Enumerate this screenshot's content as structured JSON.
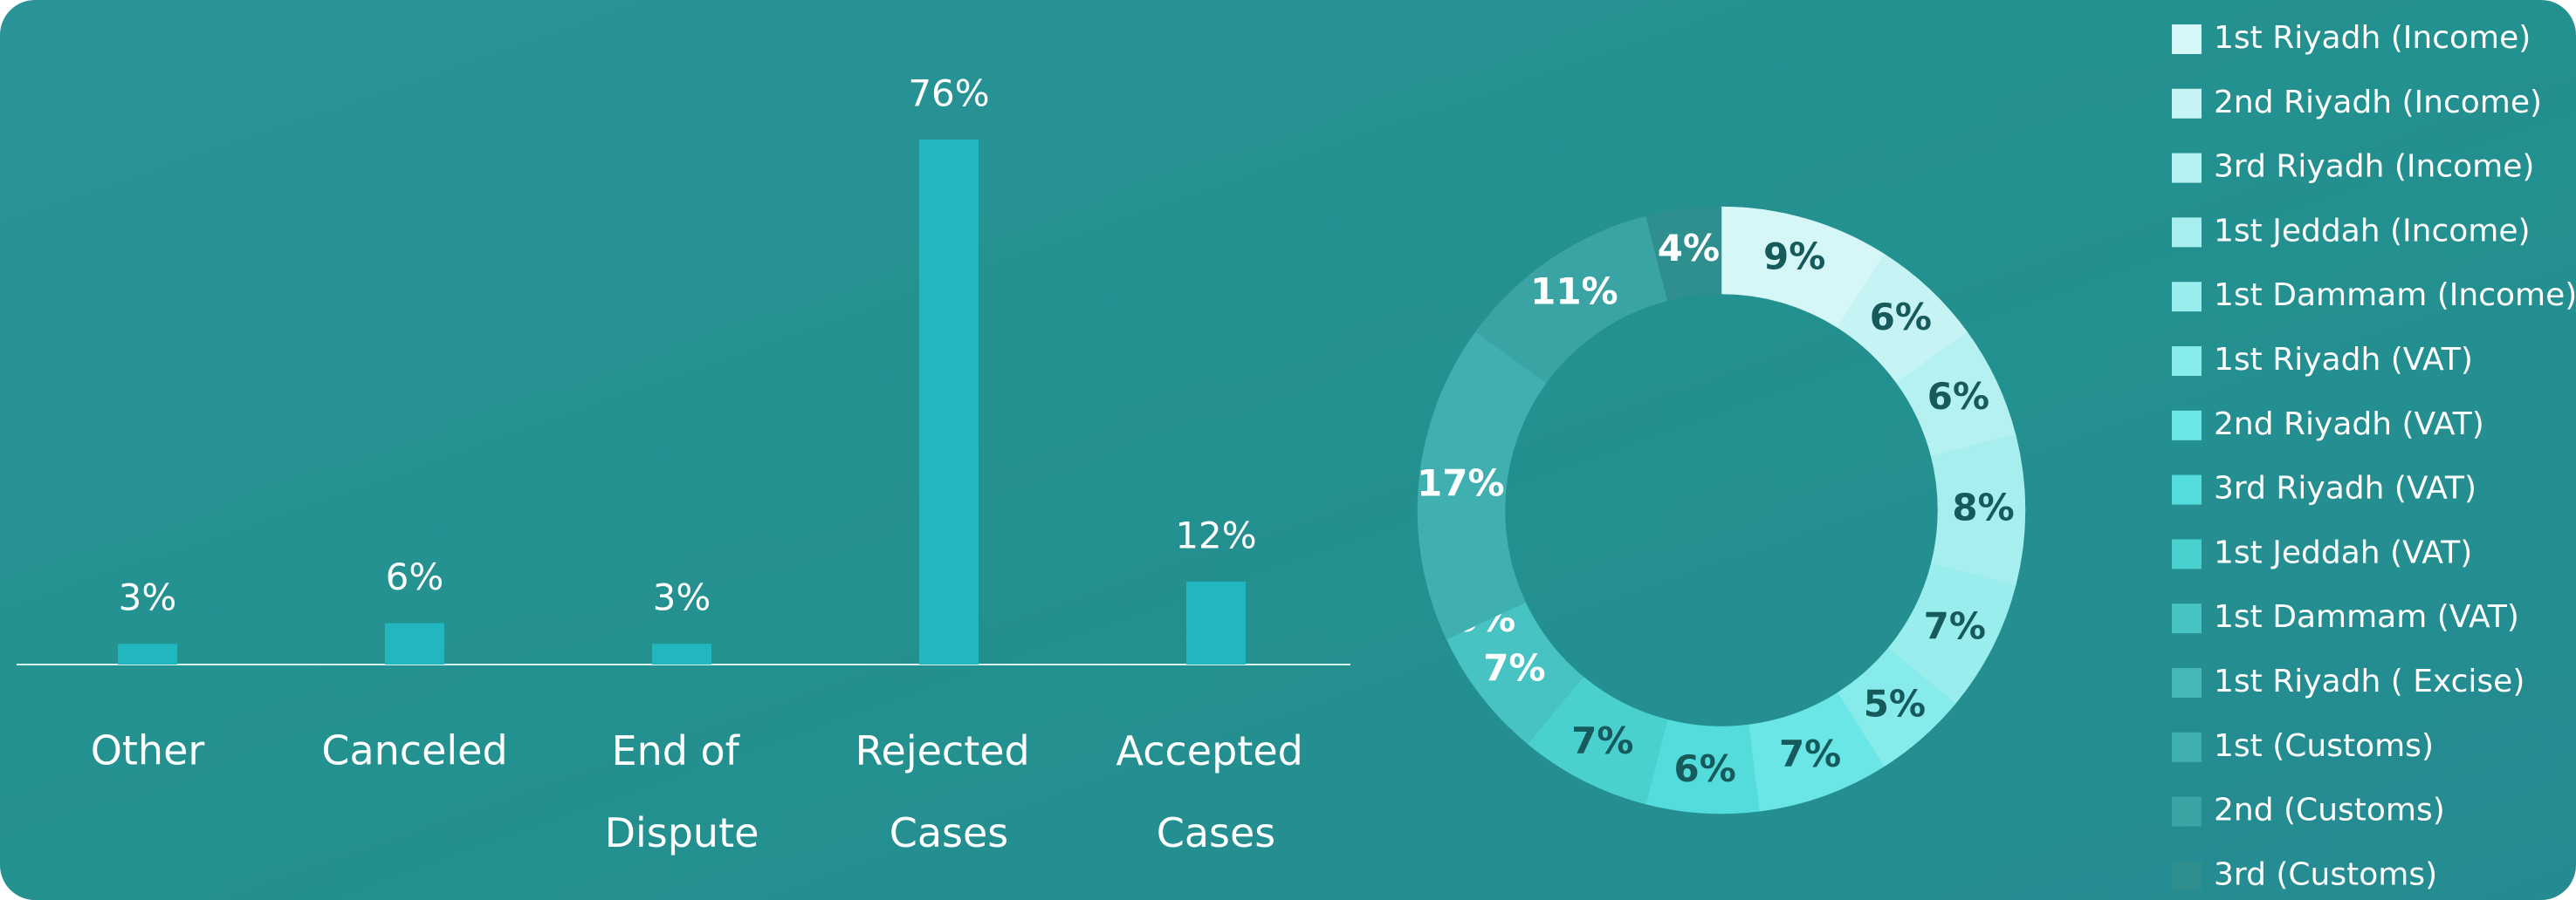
{
  "chart_data": [
    {
      "type": "bar",
      "categories": [
        "Other",
        "Canceled",
        "End of Dispute",
        "Rejected Cases",
        "Accepted Cases"
      ],
      "values": [
        3,
        6,
        3,
        76,
        12
      ],
      "value_labels": [
        "3%",
        "6%",
        "3%",
        "76%",
        "12%"
      ],
      "color": "#22b6bf"
    },
    {
      "type": "donut",
      "categories": [
        "1st Riyadh (Income)",
        "2nd Riyadh (Income)",
        "3rd Riyadh (Income)",
        "1st Jeddah (Income)",
        "1st Dammam (Income)",
        "1st Riyadh (VAT)",
        "2nd Riyadh (VAT)",
        "3rd Riyadh (VAT)",
        "1st Jeddah (VAT)",
        "1st Dammam (VAT)",
        "1st Riyadh ( Excise)",
        "1st (Customs)",
        "2nd (Customs)",
        "3rd (Customs)"
      ],
      "values": [
        9,
        6,
        6,
        8,
        7,
        5,
        7,
        6,
        7,
        7,
        0,
        17,
        11,
        4
      ],
      "value_labels": [
        "9%",
        "6%",
        "6%",
        "8%",
        "7%",
        "5%",
        "7%",
        "6%",
        "7%",
        "7%",
        "0%",
        "17%",
        "11%",
        "4%"
      ],
      "colors": [
        "#d6f7f7",
        "#c6f4f4",
        "#b6f1f1",
        "#a7efef",
        "#99eded",
        "#88ebeb",
        "#6be6e6",
        "#54dcdc",
        "#4bd0d0",
        "#47c3c3",
        "#44b8b8",
        "#3fafaf",
        "#3aa4a4",
        "#2f8e8e"
      ],
      "label_colors": [
        "#175a5c",
        "#175a5c",
        "#175a5c",
        "#175a5c",
        "#175a5c",
        "#175a5c",
        "#175a5c",
        "#175a5c",
        "#175a5c",
        "#ffffff",
        "#ffffff",
        "#ffffff",
        "#ffffff",
        "#ffffff"
      ],
      "legend": "right"
    }
  ]
}
